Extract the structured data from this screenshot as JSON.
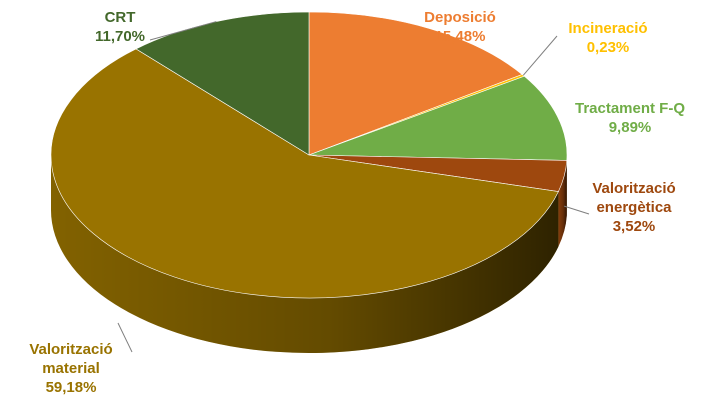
{
  "chart_data": {
    "type": "pie",
    "style": "3d",
    "slices": [
      {
        "label": "Deposició",
        "value": 15.48,
        "value_label": "15,48%",
        "color": "#ED7D31",
        "label_color": "#ED7D31"
      },
      {
        "label": "Incineració",
        "value": 0.23,
        "value_label": "0,23%",
        "color": "#FFC000",
        "label_color": "#FFC000"
      },
      {
        "label": "Tractament F-Q",
        "value": 9.89,
        "value_label": "9,89%",
        "color": "#70AD47",
        "label_color": "#70AD47"
      },
      {
        "label": "Valorització energètica",
        "value": 3.52,
        "value_label": "3,52%",
        "color": "#9E480E",
        "label_color": "#9E480E"
      },
      {
        "label": "Valorització material",
        "value": 59.18,
        "value_label": "59,18%",
        "color": "#997300",
        "label_color": "#997300"
      },
      {
        "label": "CRT",
        "value": 11.7,
        "value_label": "11,70%",
        "color": "#43682B",
        "label_color": "#43682B"
      }
    ]
  }
}
